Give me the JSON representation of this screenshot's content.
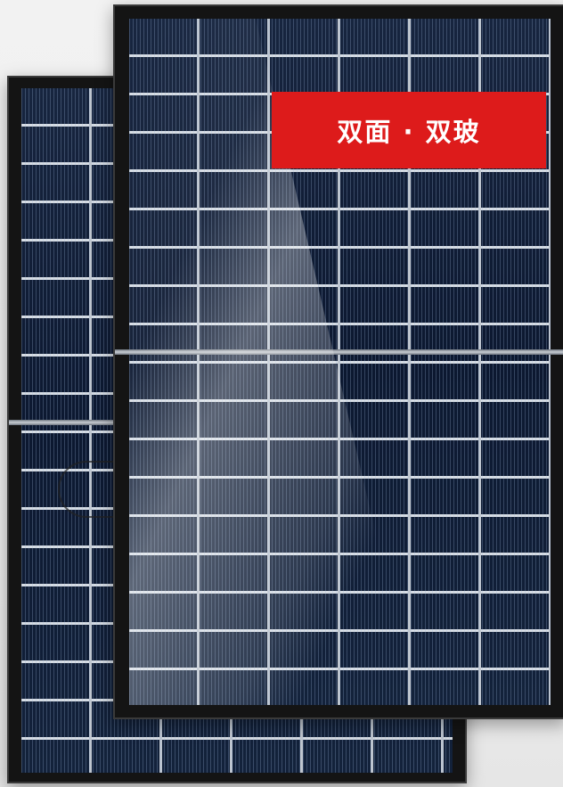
{
  "badge": {
    "text": "双面 · 双玻",
    "color": "#dd1b1b"
  },
  "image": {
    "subject_icons": [
      "back-solar-panel",
      "front-solar-panel"
    ]
  }
}
